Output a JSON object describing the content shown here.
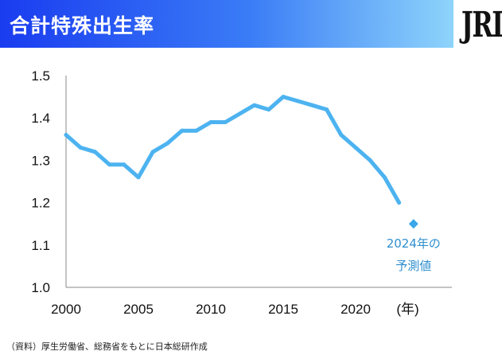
{
  "header": {
    "title": "合計特殊出生率",
    "logo_text": "JRI"
  },
  "footer": {
    "source_note": "（資料）厚生労働省、総務省をもとに日本総研作成"
  },
  "colors": {
    "series": "#4db3f0",
    "forecast": "#3aa8e8",
    "annotation_text": "#2e8fcf",
    "header_start": "#1a3cf0",
    "header_end": "#8ed4fb"
  },
  "chart_data": {
    "type": "line",
    "x_unit_label": "(年)",
    "xlim": [
      2000,
      2025
    ],
    "ylim": [
      1.0,
      1.5
    ],
    "x_ticks": [
      2000,
      2005,
      2010,
      2015,
      2020
    ],
    "y_ticks": [
      1.0,
      1.1,
      1.2,
      1.3,
      1.4,
      1.5
    ],
    "y_tick_labels": [
      "1.0",
      "1.1",
      "1.2",
      "1.3",
      "1.4",
      "1.5"
    ],
    "grid": false,
    "series": [
      {
        "x": [
          2000,
          2001,
          2002,
          2003,
          2004,
          2005,
          2006,
          2007,
          2008,
          2009,
          2010,
          2011,
          2012,
          2013,
          2014,
          2015,
          2016,
          2017,
          2018,
          2019,
          2020,
          2021,
          2022,
          2023
        ],
        "values": [
          1.36,
          1.33,
          1.32,
          1.29,
          1.29,
          1.26,
          1.32,
          1.34,
          1.37,
          1.37,
          1.39,
          1.39,
          1.41,
          1.43,
          1.42,
          1.45,
          1.44,
          1.43,
          1.42,
          1.36,
          1.33,
          1.3,
          1.26,
          1.2
        ]
      }
    ],
    "forecast_point": {
      "x": 2024,
      "value": 1.15
    },
    "annotation": {
      "line1": "2024年の",
      "line2": "予測値"
    }
  }
}
